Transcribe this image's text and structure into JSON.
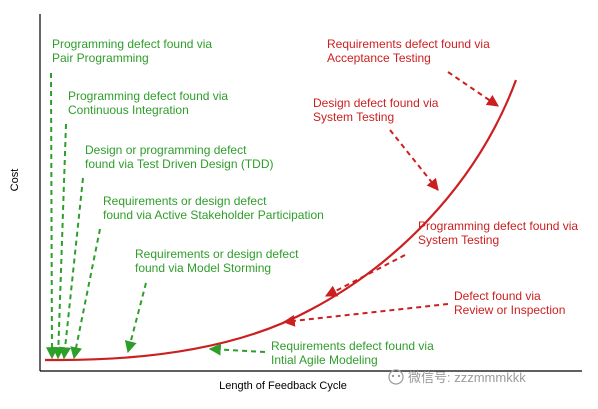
{
  "colors": {
    "curve": "#cc1f1f",
    "agile_annotations": "#2e9e2a",
    "traditional_annotations": "#cc1f1f",
    "axes": "#000000"
  },
  "chart_data": {
    "type": "line",
    "xlabel": "Length of Feedback Cycle",
    "ylabel": "Cost",
    "grid": false,
    "legend": "none",
    "series": [
      {
        "curve": "exponential",
        "description_points_relative": [
          [
            0,
            0
          ],
          [
            0.25,
            0.04
          ],
          [
            0.5,
            0.17
          ],
          [
            0.75,
            0.45
          ],
          [
            1,
            1
          ]
        ]
      }
    ],
    "annotations_agile": [
      {
        "lines": [
          "Programming defect found via",
          "Pair Programming"
        ]
      },
      {
        "lines": [
          "Programming defect found via",
          "Continuous Integration"
        ]
      },
      {
        "lines": [
          "Design or programming defect",
          "found via Test Driven Design (TDD)"
        ]
      },
      {
        "lines": [
          "Requirements or design defect",
          "found via Active Stakeholder Participation"
        ]
      },
      {
        "lines": [
          "Requirements or design defect",
          "found via Model Storming"
        ]
      },
      {
        "lines": [
          "Requirements  defect found via",
          "Intial Agile Modeling"
        ]
      }
    ],
    "annotations_traditional": [
      {
        "lines": [
          "Requirements  defect found via",
          "Acceptance Testing"
        ]
      },
      {
        "lines": [
          "Design  defect found via",
          "System Testing"
        ]
      },
      {
        "lines": [
          "Programming defect found via",
          "System Testing"
        ]
      },
      {
        "lines": [
          "Defect found via",
          "Review or Inspection"
        ]
      }
    ]
  },
  "watermark": {
    "text": "微信号: zzzmmmkkk"
  }
}
